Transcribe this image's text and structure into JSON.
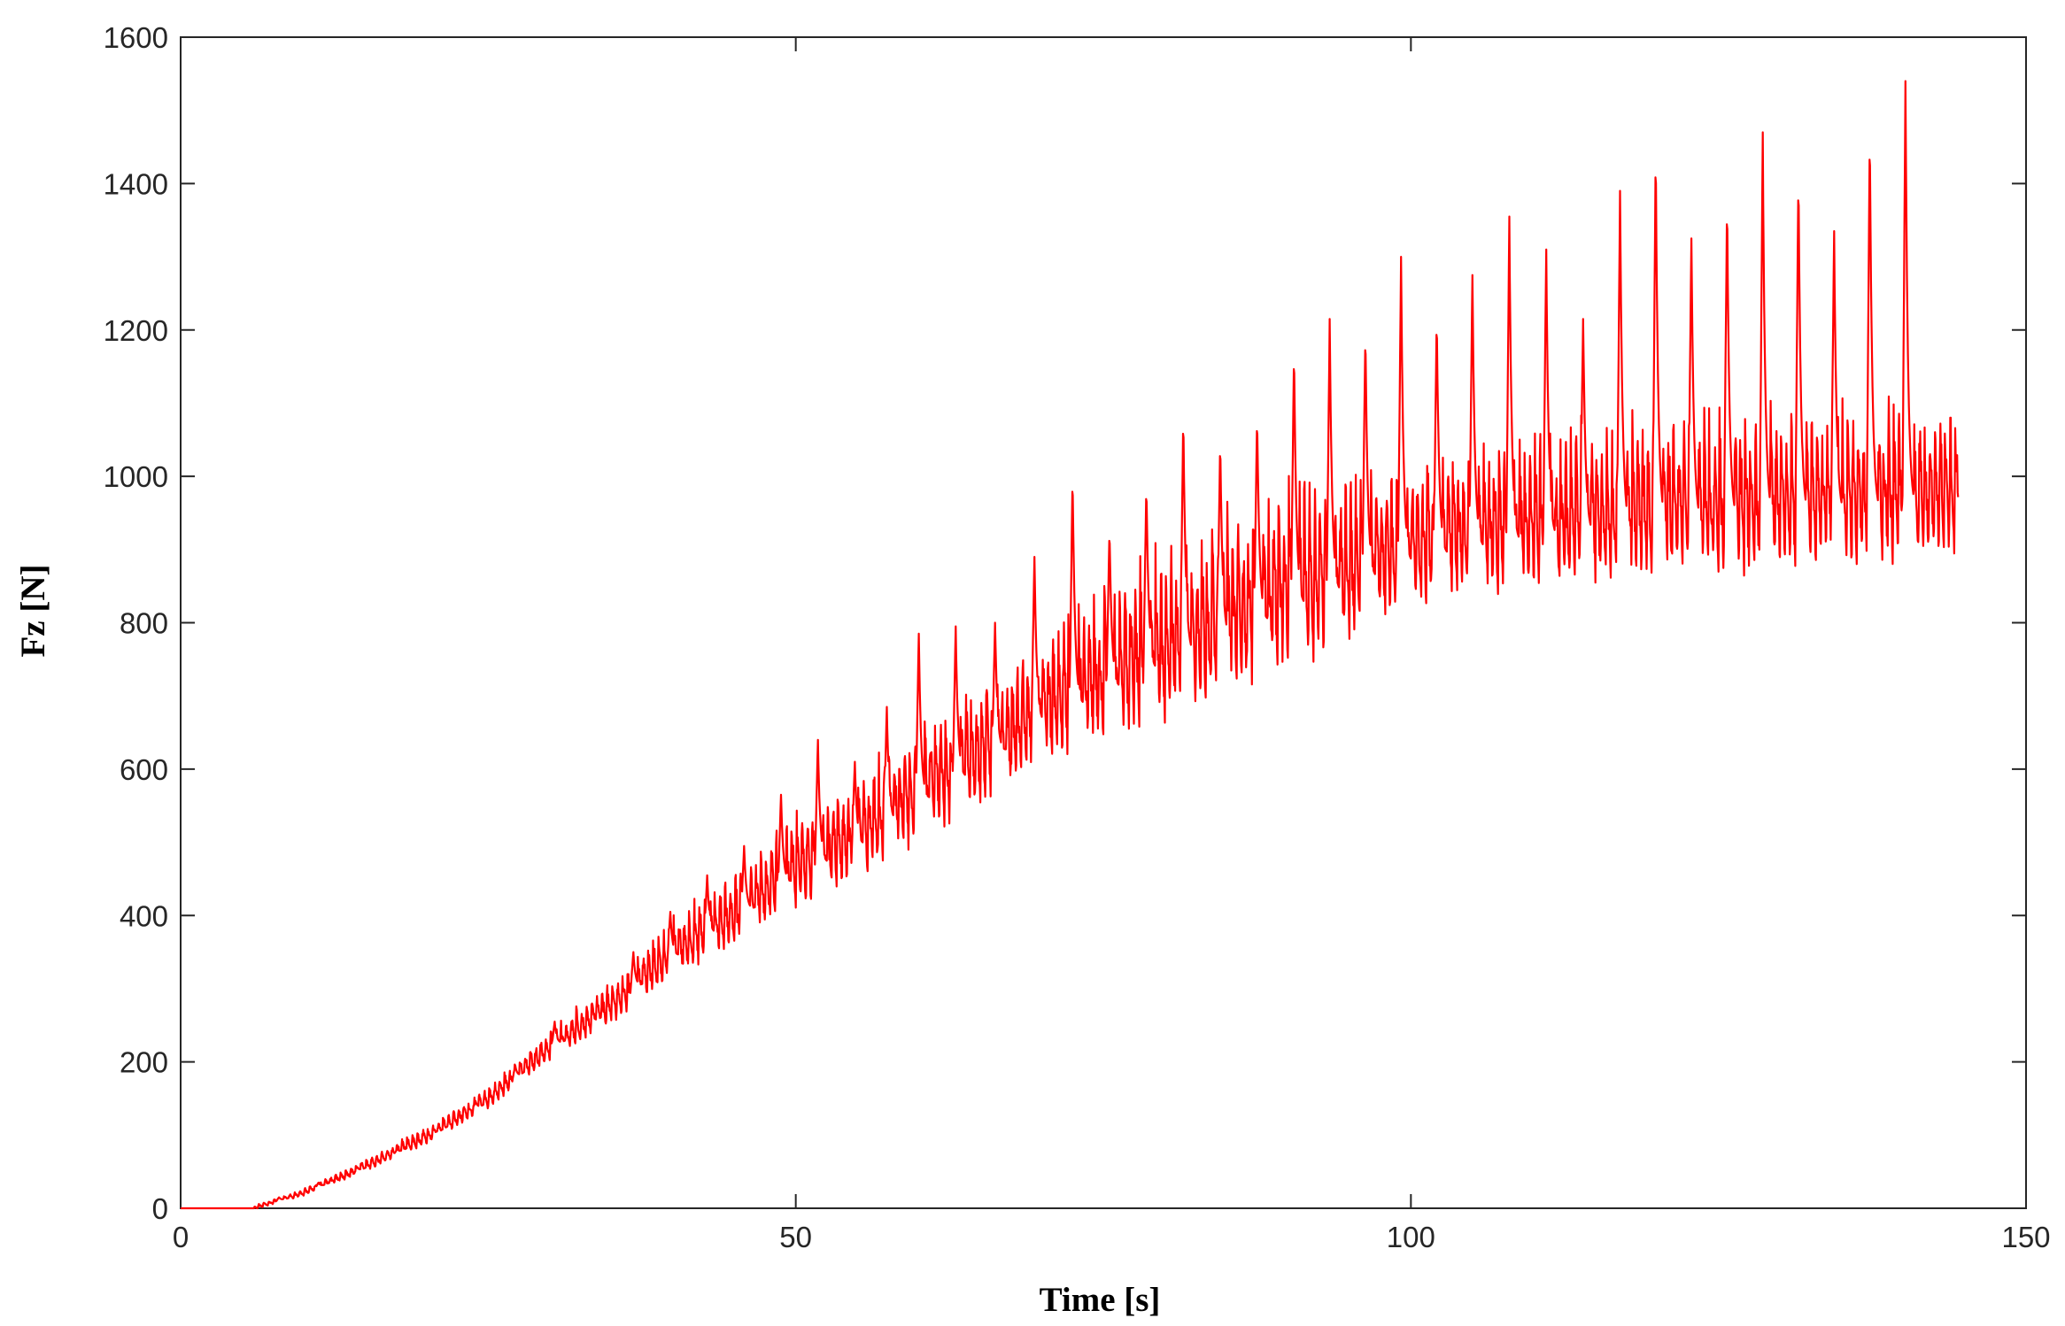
{
  "chart_data": {
    "type": "line",
    "title": "",
    "xlabel": "Time [s]",
    "ylabel": "Fz [N]",
    "xlim": [
      0,
      150
    ],
    "ylim": [
      0,
      1600
    ],
    "xticks": [
      0,
      50,
      100,
      150
    ],
    "yticks": [
      0,
      200,
      400,
      600,
      800,
      1000,
      1200,
      1400,
      1600
    ],
    "grid": false,
    "legend": "none",
    "line_color": "#ff0000",
    "duration": 144.5,
    "cycle_period": 3.2,
    "series": [
      {
        "color": "#ff0000",
        "baseline": {
          "x": [
            0,
            6,
            10,
            15,
            20,
            25,
            30,
            35,
            40,
            45,
            50,
            55,
            60,
            65,
            70,
            75,
            80,
            85,
            90,
            95,
            100,
            105,
            110,
            115,
            120,
            125,
            130,
            135,
            140,
            144.5
          ],
          "y": [
            0,
            0,
            20,
            55,
            95,
            145,
            215,
            270,
            340,
            390,
            450,
            490,
            550,
            600,
            660,
            700,
            740,
            775,
            815,
            845,
            880,
            900,
            910,
            920,
            930,
            935,
            940,
            945,
            950,
            960
          ]
        },
        "band_envelope": {
          "x": [
            0,
            10,
            20,
            30,
            40,
            50,
            60,
            70,
            80,
            90,
            100,
            110,
            120,
            130,
            144.5
          ],
          "y": [
            0,
            10,
            25,
            40,
            80,
            130,
            170,
            200,
            240,
            270,
            200,
            220,
            230,
            230,
            220
          ]
        },
        "peaks": [
          {
            "x": 8.0,
            "y": 15
          },
          {
            "x": 11.2,
            "y": 35
          },
          {
            "x": 14.4,
            "y": 55
          },
          {
            "x": 17.6,
            "y": 80
          },
          {
            "x": 20.8,
            "y": 105
          },
          {
            "x": 24.0,
            "y": 145
          },
          {
            "x": 27.2,
            "y": 195
          },
          {
            "x": 30.4,
            "y": 255
          },
          {
            "x": 33.6,
            "y": 260
          },
          {
            "x": 36.8,
            "y": 350
          },
          {
            "x": 39.8,
            "y": 405
          },
          {
            "x": 42.8,
            "y": 455
          },
          {
            "x": 45.8,
            "y": 495
          },
          {
            "x": 48.8,
            "y": 565
          },
          {
            "x": 51.8,
            "y": 640
          },
          {
            "x": 54.8,
            "y": 610
          },
          {
            "x": 57.4,
            "y": 685
          },
          {
            "x": 60.0,
            "y": 785
          },
          {
            "x": 63.0,
            "y": 795
          },
          {
            "x": 66.2,
            "y": 800
          },
          {
            "x": 69.4,
            "y": 890
          },
          {
            "x": 72.5,
            "y": 1005
          },
          {
            "x": 75.5,
            "y": 930
          },
          {
            "x": 78.5,
            "y": 990
          },
          {
            "x": 81.5,
            "y": 1085
          },
          {
            "x": 84.5,
            "y": 1050
          },
          {
            "x": 87.5,
            "y": 1085
          },
          {
            "x": 90.5,
            "y": 1175
          },
          {
            "x": 93.4,
            "y": 1215
          },
          {
            "x": 96.3,
            "y": 1200
          },
          {
            "x": 99.2,
            "y": 1300
          },
          {
            "x": 102.1,
            "y": 1220
          },
          {
            "x": 105.0,
            "y": 1275
          },
          {
            "x": 108.0,
            "y": 1355
          },
          {
            "x": 111.0,
            "y": 1310
          },
          {
            "x": 114.0,
            "y": 1215
          },
          {
            "x": 117.0,
            "y": 1390
          },
          {
            "x": 119.9,
            "y": 1450
          },
          {
            "x": 122.8,
            "y": 1325
          },
          {
            "x": 125.7,
            "y": 1380
          },
          {
            "x": 128.6,
            "y": 1470
          },
          {
            "x": 131.5,
            "y": 1415
          },
          {
            "x": 134.4,
            "y": 1335
          },
          {
            "x": 137.3,
            "y": 1475
          },
          {
            "x": 140.2,
            "y": 1540
          }
        ]
      }
    ]
  }
}
